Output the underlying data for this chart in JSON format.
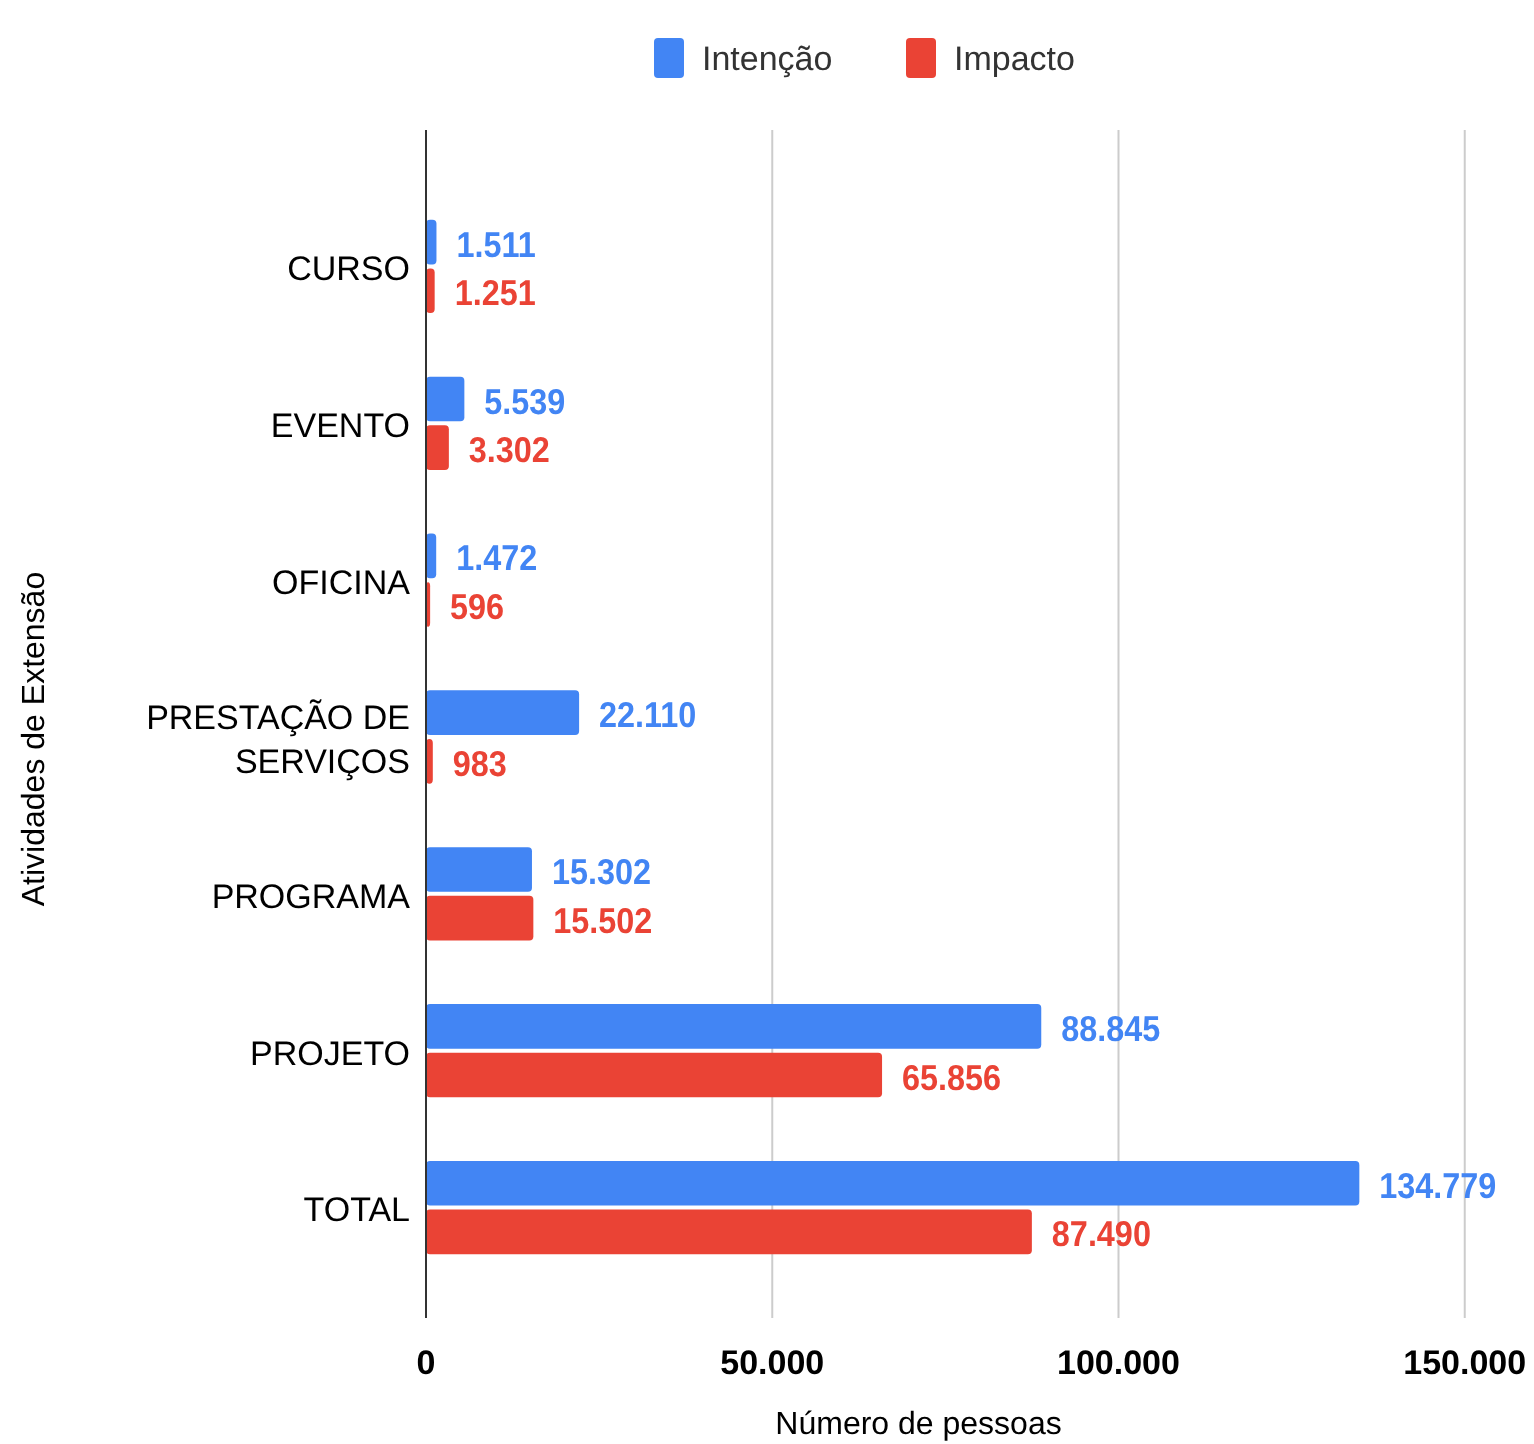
{
  "chart_data": {
    "type": "bar",
    "orientation": "horizontal",
    "ylabel": "Atividades de Extensão",
    "xlabel": "Número de pessoas",
    "categories": [
      "CURSO",
      "EVENTO",
      "OFICINA",
      "PRESTAÇÃO DE SERVIÇOS",
      "PROGRAMA",
      "PROJETO",
      "TOTAL"
    ],
    "series": [
      {
        "name": "Intenção",
        "color": "#4285f4",
        "values": [
          1511,
          5539,
          1472,
          22110,
          15302,
          88845,
          134779
        ],
        "value_labels": [
          "1.511",
          "5.539",
          "1.472",
          "22.110",
          "15.302",
          "88.845",
          "134.779"
        ]
      },
      {
        "name": "Impacto",
        "color": "#ea4335",
        "values": [
          1251,
          3302,
          596,
          983,
          15502,
          65856,
          87490
        ],
        "value_labels": [
          "1.251",
          "3.302",
          "596",
          "983",
          "15.502",
          "65.856",
          "87.490"
        ]
      }
    ],
    "xlim": [
      0,
      160000
    ],
    "xticks": [
      0,
      {
        "value": 50000,
        "label": "50.000"
      },
      {
        "value": 100000,
        "label": "100.000"
      },
      {
        "value": 150000,
        "label": "150.000"
      }
    ],
    "grid": "x",
    "legend": "top"
  }
}
